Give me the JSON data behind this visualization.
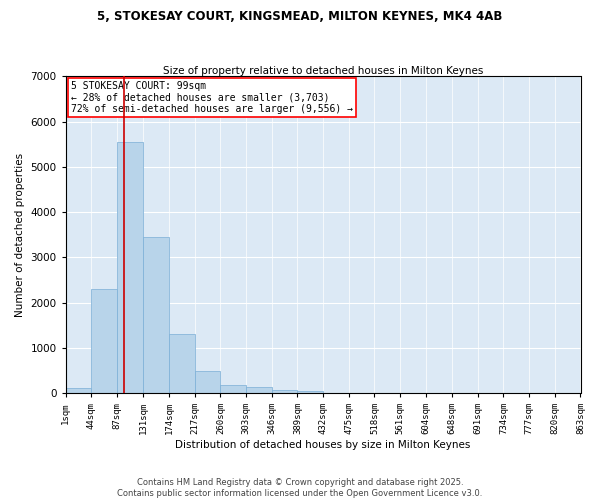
{
  "title_line1": "5, STOKESAY COURT, KINGSMEAD, MILTON KEYNES, MK4 4AB",
  "title_line2": "Size of property relative to detached houses in Milton Keynes",
  "xlabel": "Distribution of detached houses by size in Milton Keynes",
  "ylabel": "Number of detached properties",
  "background_color": "#dce9f5",
  "bar_color": "#b8d4ea",
  "bar_edge_color": "#7aaed6",
  "vline_color": "#cc0000",
  "vline_x": 99,
  "annotation_title": "5 STOKESAY COURT: 99sqm",
  "annotation_line2": "← 28% of detached houses are smaller (3,703)",
  "annotation_line3": "72% of semi-detached houses are larger (9,556) →",
  "bin_edges": [
    1,
    44,
    87,
    131,
    174,
    217,
    260,
    303,
    346,
    389,
    432,
    475,
    518,
    561,
    604,
    648,
    691,
    734,
    777,
    820,
    863
  ],
  "bin_values": [
    105,
    2300,
    5550,
    3450,
    1310,
    500,
    185,
    130,
    80,
    40,
    10,
    5,
    2,
    1,
    0,
    0,
    0,
    0,
    0,
    0
  ],
  "ylim": [
    0,
    7000
  ],
  "yticks": [
    0,
    1000,
    2000,
    3000,
    4000,
    5000,
    6000,
    7000
  ],
  "footnote_line1": "Contains HM Land Registry data © Crown copyright and database right 2025.",
  "footnote_line2": "Contains public sector information licensed under the Open Government Licence v3.0."
}
